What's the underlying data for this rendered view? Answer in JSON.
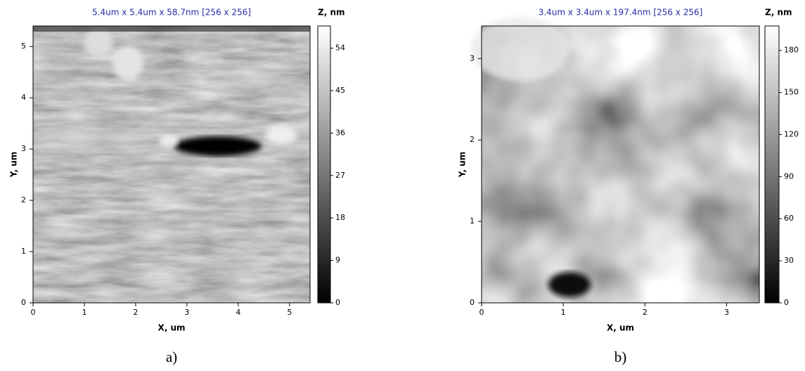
{
  "chart_data": [
    {
      "type": "image",
      "title": "5.4um x 5.4um x 58.7nm [256 x 256]",
      "x_label": "X, um",
      "y_label": "Y, um",
      "colorbar_label": "Z, nm",
      "xlim": [
        0,
        5.4
      ],
      "xticks": [
        0,
        1,
        2,
        3,
        4,
        5
      ],
      "ylim": [
        0,
        5.4
      ],
      "yticks": [
        0,
        1,
        2,
        3,
        4,
        5
      ],
      "zlim": [
        0,
        58.7
      ],
      "zticks": [
        0,
        9,
        18,
        27,
        36,
        45,
        54
      ],
      "caption": "a)"
    },
    {
      "type": "image",
      "title": "3.4um x 3.4um x 197.4nm [256 x 256]",
      "x_label": "X, um",
      "y_label": "Y, um",
      "colorbar_label": "Z, nm",
      "xlim": [
        0,
        3.4
      ],
      "xticks": [
        0,
        1,
        2,
        3
      ],
      "ylim": [
        0,
        3.4
      ],
      "yticks": [
        0,
        1,
        2,
        3
      ],
      "zlim": [
        0,
        197.4
      ],
      "zticks": [
        0,
        30,
        60,
        90,
        120,
        150,
        180
      ],
      "caption": "b)"
    }
  ]
}
